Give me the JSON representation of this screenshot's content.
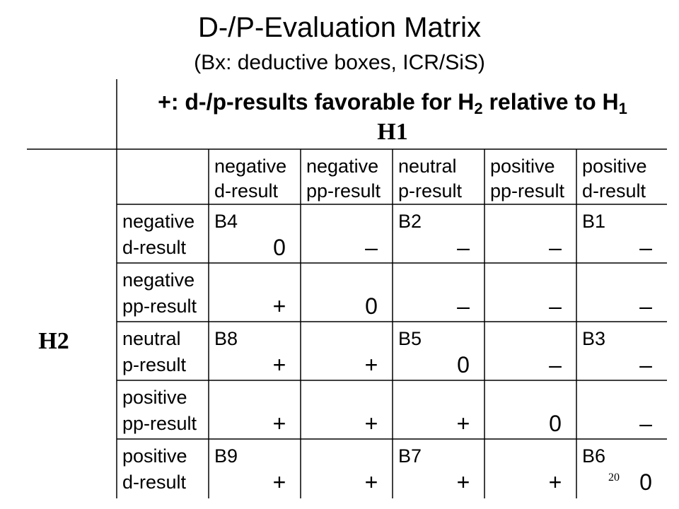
{
  "title": "D-/P-Evaluation Matrix",
  "subtitle": "(Bx: deductive boxes, ICR/SiS)",
  "header": {
    "parts": [
      "+: d-/p-results favorable for H",
      "2",
      " relative to H",
      "1"
    ]
  },
  "column_axis": "H1",
  "row_axis": "H2",
  "columns": [
    [
      "negative",
      "d-result"
    ],
    [
      "negative",
      "pp-result"
    ],
    [
      "neutral",
      "p-result"
    ],
    [
      "positive",
      "pp-result"
    ],
    [
      "positive",
      "d-result"
    ]
  ],
  "rows": [
    {
      "label": [
        "negative",
        "d-result"
      ],
      "cells": [
        {
          "box": "B4",
          "symbol": "0"
        },
        {
          "symbol": "–"
        },
        {
          "box": "B2",
          "symbol": "–"
        },
        {
          "symbol": "–"
        },
        {
          "box": "B1",
          "symbol": "–"
        }
      ]
    },
    {
      "label": [
        "negative",
        "pp-result"
      ],
      "cells": [
        {
          "symbol": "+"
        },
        {
          "symbol": "0"
        },
        {
          "symbol": "–"
        },
        {
          "symbol": "–"
        },
        {
          "symbol": "–"
        }
      ]
    },
    {
      "label": [
        "neutral",
        "p-result"
      ],
      "cells": [
        {
          "box": "B8",
          "symbol": "+"
        },
        {
          "symbol": "+"
        },
        {
          "box": "B5",
          "symbol": "0"
        },
        {
          "symbol": "–"
        },
        {
          "box": "B3",
          "symbol": "–"
        }
      ]
    },
    {
      "label": [
        "positive",
        "pp-result"
      ],
      "cells": [
        {
          "symbol": "+"
        },
        {
          "symbol": "+"
        },
        {
          "symbol": "+"
        },
        {
          "symbol": "0"
        },
        {
          "symbol": "–"
        }
      ]
    },
    {
      "label": [
        "positive",
        "d-result"
      ],
      "cells": [
        {
          "box": "B9",
          "symbol": "+"
        },
        {
          "symbol": "+"
        },
        {
          "box": "B7",
          "symbol": "+"
        },
        {
          "symbol": "+"
        },
        {
          "box": "B6",
          "symbol": "0"
        }
      ]
    }
  ],
  "page_number": "20"
}
